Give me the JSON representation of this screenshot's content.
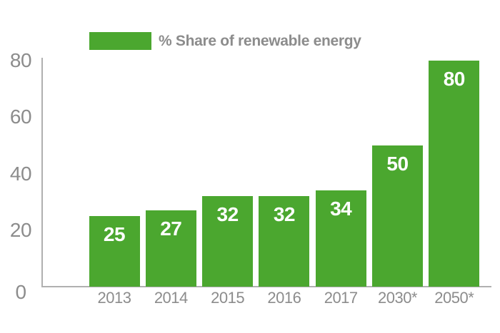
{
  "chart_data": {
    "type": "bar",
    "title": "",
    "legend": "% Share of renewable energy",
    "legend_position": "top",
    "categories": [
      "2013",
      "2014",
      "2015",
      "2016",
      "2017",
      "2030*",
      "2050*"
    ],
    "values": [
      25,
      27,
      32,
      32,
      34,
      50,
      80
    ],
    "xlabel": "",
    "ylabel": "",
    "ylim": [
      0,
      80
    ],
    "yticks": [
      0,
      20,
      40,
      60,
      80
    ],
    "grid": false,
    "colors": {
      "bar": "#4BA72F",
      "tick_label": "#8C8C8C",
      "axis_line": "#B0B0B0",
      "value_label": "#FFFFFF",
      "background": "#FFFFFF"
    }
  }
}
